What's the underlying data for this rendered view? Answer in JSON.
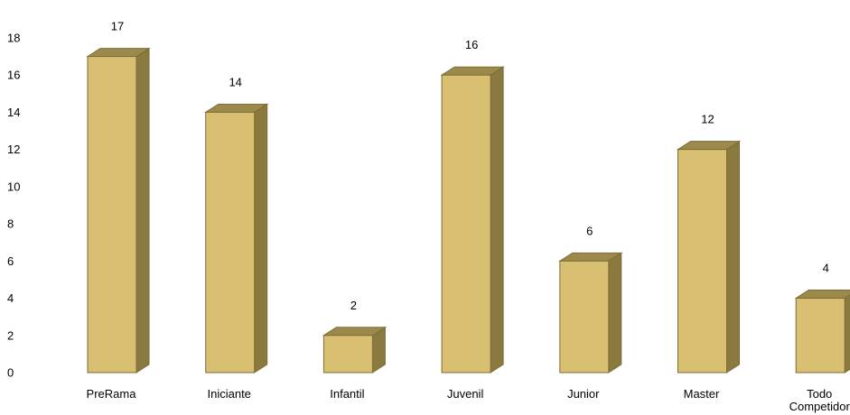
{
  "chart_data": {
    "type": "bar",
    "title": "",
    "xlabel": "",
    "ylabel": "",
    "categories": [
      "PreRama",
      "Iniciante",
      "Infantil",
      "Juvenil",
      "Junior",
      "Master",
      "Todo Competidor"
    ],
    "values": [
      17,
      14,
      2,
      16,
      6,
      12,
      4
    ],
    "data_labels": [
      "17",
      "14",
      "2",
      "16",
      "6",
      "12",
      "4"
    ],
    "yticks": [
      "0",
      "2",
      "4",
      "6",
      "8",
      "10",
      "12",
      "14",
      "16",
      "18"
    ],
    "ylim": [
      0,
      18
    ],
    "grid": false,
    "legend": "none",
    "style": "3d-column",
    "colors": {
      "front": "#d8bf72",
      "top": "#9c8a4c",
      "side": "#8a7a3f",
      "edge": "#7d6d35"
    }
  }
}
